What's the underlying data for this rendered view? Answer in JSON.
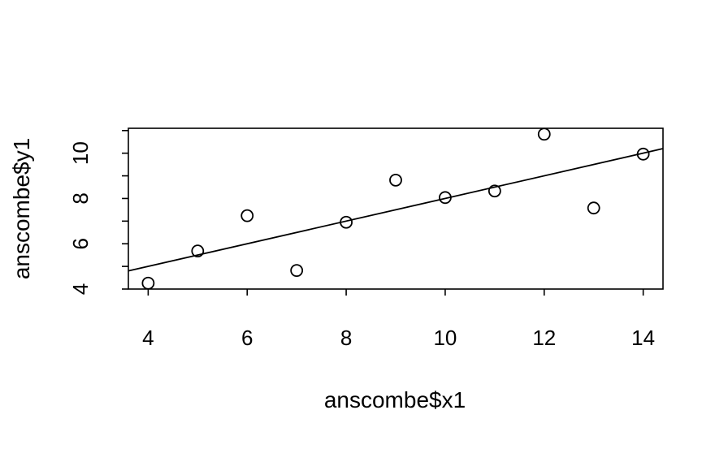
{
  "chart_data": {
    "type": "scatter",
    "title": "",
    "xlabel": "anscombe$x1",
    "ylabel": "anscombe$y1",
    "xlim": [
      3.6,
      14.4
    ],
    "ylim": [
      4.0,
      11.1
    ],
    "xticks": [
      "4",
      "6",
      "8",
      "10",
      "12",
      "14"
    ],
    "xtick_values": [
      4,
      6,
      8,
      10,
      12,
      14
    ],
    "yticks": [
      "4",
      "6",
      "8",
      "10"
    ],
    "ytick_values": [
      4,
      6,
      8,
      10
    ],
    "ytick_values_minor": [
      5,
      7,
      9,
      11
    ],
    "grid": false,
    "box": true,
    "points": [
      {
        "x": 10,
        "y": 8.04
      },
      {
        "x": 8,
        "y": 6.95
      },
      {
        "x": 13,
        "y": 7.58
      },
      {
        "x": 9,
        "y": 8.81
      },
      {
        "x": 11,
        "y": 8.33
      },
      {
        "x": 14,
        "y": 9.96
      },
      {
        "x": 6,
        "y": 7.24
      },
      {
        "x": 4,
        "y": 4.26
      },
      {
        "x": 12,
        "y": 10.84
      },
      {
        "x": 7,
        "y": 4.82
      },
      {
        "x": 5,
        "y": 5.68
      }
    ],
    "fit_line": {
      "intercept": 3.0001,
      "slope": 0.5001
    }
  }
}
